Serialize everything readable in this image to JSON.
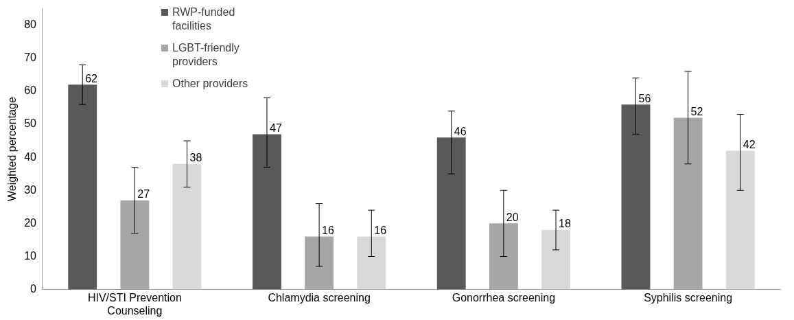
{
  "chart_data": {
    "type": "bar",
    "ylabel": "Weighted percentage",
    "categories": [
      "HIV/STI Prevention Counseling",
      "Chlamydia screening",
      "Gonorrhea screening",
      "Syphilis screening"
    ],
    "series": [
      {
        "name": "RWP-funded facilities",
        "color": "#595959",
        "values": [
          62,
          47,
          46,
          56
        ],
        "errors": [
          [
            56,
            68
          ],
          [
            37,
            58
          ],
          [
            35,
            54
          ],
          [
            47,
            64
          ]
        ]
      },
      {
        "name": "LGBT-friendly providers",
        "color": "#a6a6a6",
        "values": [
          27,
          16,
          20,
          52
        ],
        "errors": [
          [
            17,
            37
          ],
          [
            7,
            26
          ],
          [
            10,
            30
          ],
          [
            38,
            66
          ]
        ]
      },
      {
        "name": "Other providers",
        "color": "#d9d9d9",
        "values": [
          38,
          16,
          18,
          42
        ],
        "errors": [
          [
            31,
            45
          ],
          [
            10,
            24
          ],
          [
            12,
            24
          ],
          [
            30,
            53
          ]
        ]
      }
    ],
    "ylim": [
      0,
      85
    ],
    "yticks": [
      0,
      10,
      20,
      30,
      40,
      50,
      60,
      70,
      80
    ],
    "grid": false,
    "legend": "top left",
    "data_labels": true
  }
}
